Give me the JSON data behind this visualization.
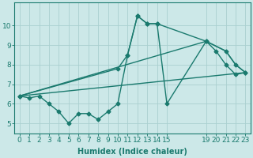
{
  "bg_color": "#cce8e8",
  "grid_color": "#aad0d0",
  "line_color": "#1a7a6e",
  "line_width": 1.0,
  "marker": "D",
  "marker_size": 2.5,
  "xlabel": "Humidex (Indice chaleur)",
  "xlabel_fontsize": 7,
  "tick_fontsize": 6.5,
  "ylim": [
    4.5,
    11.2
  ],
  "xlim": [
    -0.5,
    23.5
  ],
  "yticks": [
    5,
    6,
    7,
    8,
    9,
    10
  ],
  "xticks": [
    0,
    1,
    2,
    3,
    4,
    5,
    6,
    7,
    8,
    9,
    10,
    11,
    12,
    13,
    14,
    15,
    19,
    20,
    21,
    22,
    23
  ],
  "line1_x": [
    0,
    1,
    2,
    3,
    4,
    5,
    6,
    7,
    8,
    9,
    10,
    11,
    12,
    13,
    14,
    15,
    19,
    20,
    21,
    22,
    23
  ],
  "line1_y": [
    6.4,
    6.3,
    6.4,
    6.0,
    5.6,
    5.0,
    5.5,
    5.5,
    5.2,
    5.6,
    6.0,
    8.5,
    10.5,
    10.1,
    10.1,
    6.0,
    9.2,
    8.7,
    8.0,
    7.5,
    7.6
  ],
  "line2_x": [
    0,
    10,
    11,
    12,
    13,
    14,
    19,
    21,
    22,
    23
  ],
  "line2_y": [
    6.4,
    7.8,
    8.5,
    10.5,
    10.1,
    10.1,
    9.2,
    8.7,
    8.0,
    7.6
  ],
  "line3_x": [
    0,
    23
  ],
  "line3_y": [
    6.4,
    7.6
  ],
  "line4_x": [
    0,
    19,
    21,
    22,
    23
  ],
  "line4_y": [
    6.4,
    9.2,
    8.7,
    8.0,
    7.6
  ]
}
